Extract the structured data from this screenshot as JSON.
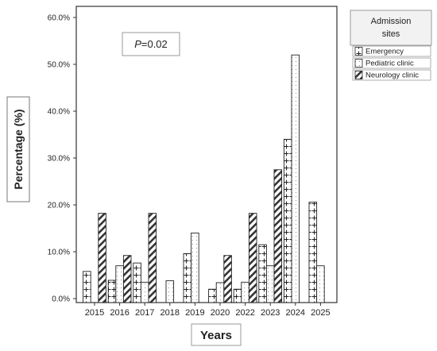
{
  "chart_data": {
    "type": "bar",
    "xlabel": "Years",
    "ylabel": "Percentage (%)",
    "annotation": {
      "italic": "P",
      "rest": "=0.02"
    },
    "ylim": [
      0,
      60
    ],
    "yticks": [
      "0.0%",
      "10.0%",
      "20.0%",
      "30.0%",
      "40.0%",
      "50.0%",
      "60.0%"
    ],
    "yticks_values": [
      0,
      10,
      20,
      30,
      40,
      50,
      60
    ],
    "grid": false,
    "legend_position": "top-right",
    "legend_title": [
      "Admission",
      "sites"
    ],
    "categories": [
      "2015",
      "2016",
      "2017",
      "2018",
      "2019",
      "2020",
      "2022",
      "2023",
      "2024",
      "2025"
    ],
    "series": [
      {
        "name": "Emergency",
        "pattern": "plus",
        "values": [
          5.8,
          3.9,
          7.6,
          0,
          9.6,
          2.0,
          2.0,
          11.5,
          34.0,
          20.6
        ]
      },
      {
        "name": "Pediatric clinic",
        "pattern": "dots",
        "values": [
          0,
          7.0,
          3.5,
          3.8,
          14.0,
          3.4,
          3.5,
          7.0,
          52.0,
          7.0
        ]
      },
      {
        "name": "Neurology clinic",
        "pattern": "hatch",
        "values": [
          18.2,
          9.2,
          18.2,
          0,
          0,
          9.2,
          18.2,
          27.5,
          0,
          0
        ]
      }
    ]
  }
}
